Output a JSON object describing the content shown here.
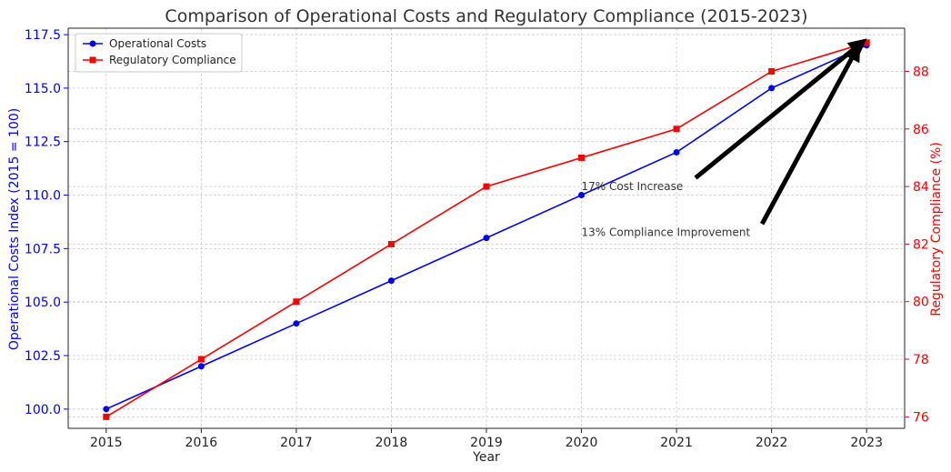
{
  "chart_data": {
    "type": "line",
    "title": "Comparison of Operational Costs and Regulatory Compliance (2015-2023)",
    "xlabel": "Year",
    "x": [
      2015,
      2016,
      2017,
      2018,
      2019,
      2020,
      2021,
      2022,
      2023
    ],
    "grid": true,
    "legend_position": "top-left",
    "y_left": {
      "label": "Operational Costs Index (2015 = 100)",
      "color": "#0000ff",
      "ticks": [
        "100.0",
        "102.5",
        "105.0",
        "107.5",
        "110.0",
        "112.5",
        "115.0",
        "117.5"
      ],
      "ylim": [
        99.1,
        117.8
      ]
    },
    "y_right": {
      "label": "Regulatory Compliance (%)",
      "color": "#ff0000",
      "ticks": [
        "76",
        "78",
        "80",
        "82",
        "84",
        "86",
        "88"
      ],
      "ylim": [
        75.6,
        89.5
      ]
    },
    "series": [
      {
        "name": "Operational Costs",
        "axis": "left",
        "color": "#0000ff",
        "marker": "circle",
        "values": [
          100,
          102,
          104,
          106,
          108,
          110,
          112,
          115,
          117
        ]
      },
      {
        "name": "Regulatory Compliance",
        "axis": "right",
        "color": "#ff0000",
        "marker": "square",
        "values": [
          76,
          78,
          80,
          82,
          84,
          85,
          86,
          88,
          89
        ]
      }
    ],
    "annotations": [
      {
        "text": "17% Cost Increase",
        "text_at": {
          "x": 2020,
          "axis": "right",
          "y": 84.0
        },
        "arrow_tail": {
          "x": 2021.2,
          "axis": "right",
          "y": 84.3
        },
        "arrow_head": {
          "x": 2022.95,
          "axis": "right",
          "y": 89.0
        }
      },
      {
        "text": "13% Compliance Improvement",
        "text_at": {
          "x": 2020,
          "axis": "right",
          "y": 82.4
        },
        "arrow_tail": {
          "x": 2021.9,
          "axis": "right",
          "y": 82.7
        },
        "arrow_head": {
          "x": 2022.9,
          "axis": "right",
          "y": 88.8
        }
      }
    ]
  }
}
